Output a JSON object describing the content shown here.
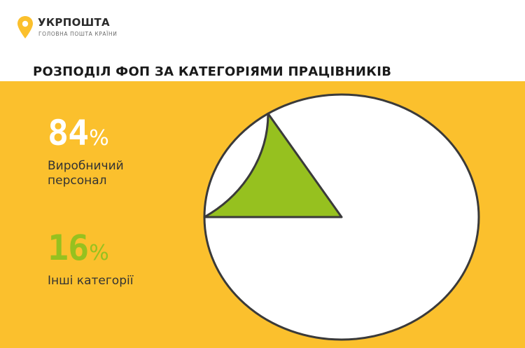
{
  "logo": {
    "name": "УКРПОШТА",
    "tagline": "ГОЛОВНА ПОШТА КРАЇНИ",
    "colors": {
      "pin": "#fbc02d",
      "pin_dot": "#ffffff"
    }
  },
  "title": "РОЗПОДІЛ ФОП ЗА КАТЕГОРІЯМИ ПРАЦІВНИКІВ",
  "stats": [
    {
      "value": "84",
      "unit": "%",
      "label": "Виробничий персонал",
      "color": "#ffffff"
    },
    {
      "value": "16",
      "unit": "%",
      "label": "Інші категорії",
      "color": "#96c11f"
    }
  ],
  "colors": {
    "panel": "#fbc02d",
    "outline": "#3a3a3a"
  },
  "chart_data": {
    "type": "pie",
    "title": "РОЗПОДІЛ ФОП ЗА КАТЕГОРІЯМИ ПРАЦІВНИКІВ",
    "unit": "%",
    "slices": [
      {
        "label": "Виробничий персонал",
        "value": 84,
        "color": "#ffffff"
      },
      {
        "label": "Інші категорії",
        "value": 16,
        "color": "#96c11f"
      }
    ]
  }
}
